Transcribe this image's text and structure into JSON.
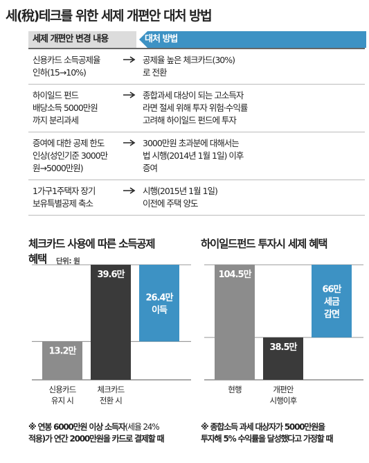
{
  "title": "세(稅)테크를 위한 세제 개편안 대처 방법",
  "table": {
    "header_left": "세제 개편안 변경 내용",
    "header_right": "대처 방법",
    "rows": [
      {
        "left": [
          "신용카드 소득공제율",
          "인하(15→10%)"
        ],
        "right": [
          "공제율 높은 체크카드(30%)",
          "로 전환"
        ]
      },
      {
        "left": [
          "하이일드 펀드",
          "배당소득 5000만원",
          "까지 분리과세"
        ],
        "right": [
          "종합과세 대상이 되는 고소득자",
          "라면 절세 위해 투자 위험·수익률",
          "고려해 하이일드 펀드에 투자"
        ]
      },
      {
        "left": [
          "증여에 대한 공제 한도",
          "인상(성인기준 3000만",
          "원→5000만원)"
        ],
        "right": [
          "3000만원 초과분에 대해서는",
          "법 시행(2014년 1월 1일) 이후",
          "증여"
        ]
      },
      {
        "left": [
          "1가구1주택자 장기",
          "보유특별공제 축소"
        ],
        "right": [
          "시행(2015년 1월 1일)",
          "이전에 주택 양도"
        ]
      }
    ]
  },
  "left_chart": {
    "title_line1": "체크카드 사용에 따른 소득공제",
    "title_line2": "혜택",
    "unit": "단위: 원",
    "note_line1_bold": "※ 연봉 6000만원 이상 소득자",
    "note_line1_light": "(세율 24%",
    "note_line2": "적용)가 연간 2000만원을 카드로 결제할 때"
  },
  "right_chart": {
    "title": "하이일드펀드 투자시 세제 혜택",
    "note_line1": "※ 종합소득 과세 대상자가 5000만원을",
    "note_line2": "투자해 5% 수익률을 달성했다고 가정할 때"
  },
  "colors": {
    "gray": "#8c8c8c",
    "dark": "#3a3a3a",
    "blue": "#3d92c4"
  },
  "chart_data": [
    {
      "type": "bar",
      "title": "체크카드 사용에 따른 소득공제 혜택",
      "unit": "단위: 원",
      "categories": [
        [
          "신용카드",
          "유지 시"
        ],
        [
          "체크카드",
          "전환 시"
        ],
        ""
      ],
      "values": [
        13.2,
        39.6,
        26.4
      ],
      "labels": [
        [
          "13.2만"
        ],
        [
          "39.6만"
        ],
        [
          "26.4만",
          "이득"
        ]
      ],
      "colors": [
        "#8c8c8c",
        "#3a3a3a",
        "#3d92c4"
      ],
      "kind": "waterfall",
      "ylim": [
        0,
        39.6
      ]
    },
    {
      "type": "bar",
      "title": "하이일드펀드 투자시 세제 혜택",
      "categories": [
        [
          "현행"
        ],
        [
          "개편안",
          "시행이후"
        ],
        ""
      ],
      "values": [
        104.5,
        38.5,
        66
      ],
      "labels": [
        [
          "104.5만"
        ],
        [
          "38.5만"
        ],
        [
          "66만",
          "세금",
          "감면"
        ]
      ],
      "colors": [
        "#8c8c8c",
        "#3a3a3a",
        "#3d92c4"
      ],
      "kind": "waterfall-down",
      "ylim": [
        0,
        104.5
      ]
    }
  ]
}
